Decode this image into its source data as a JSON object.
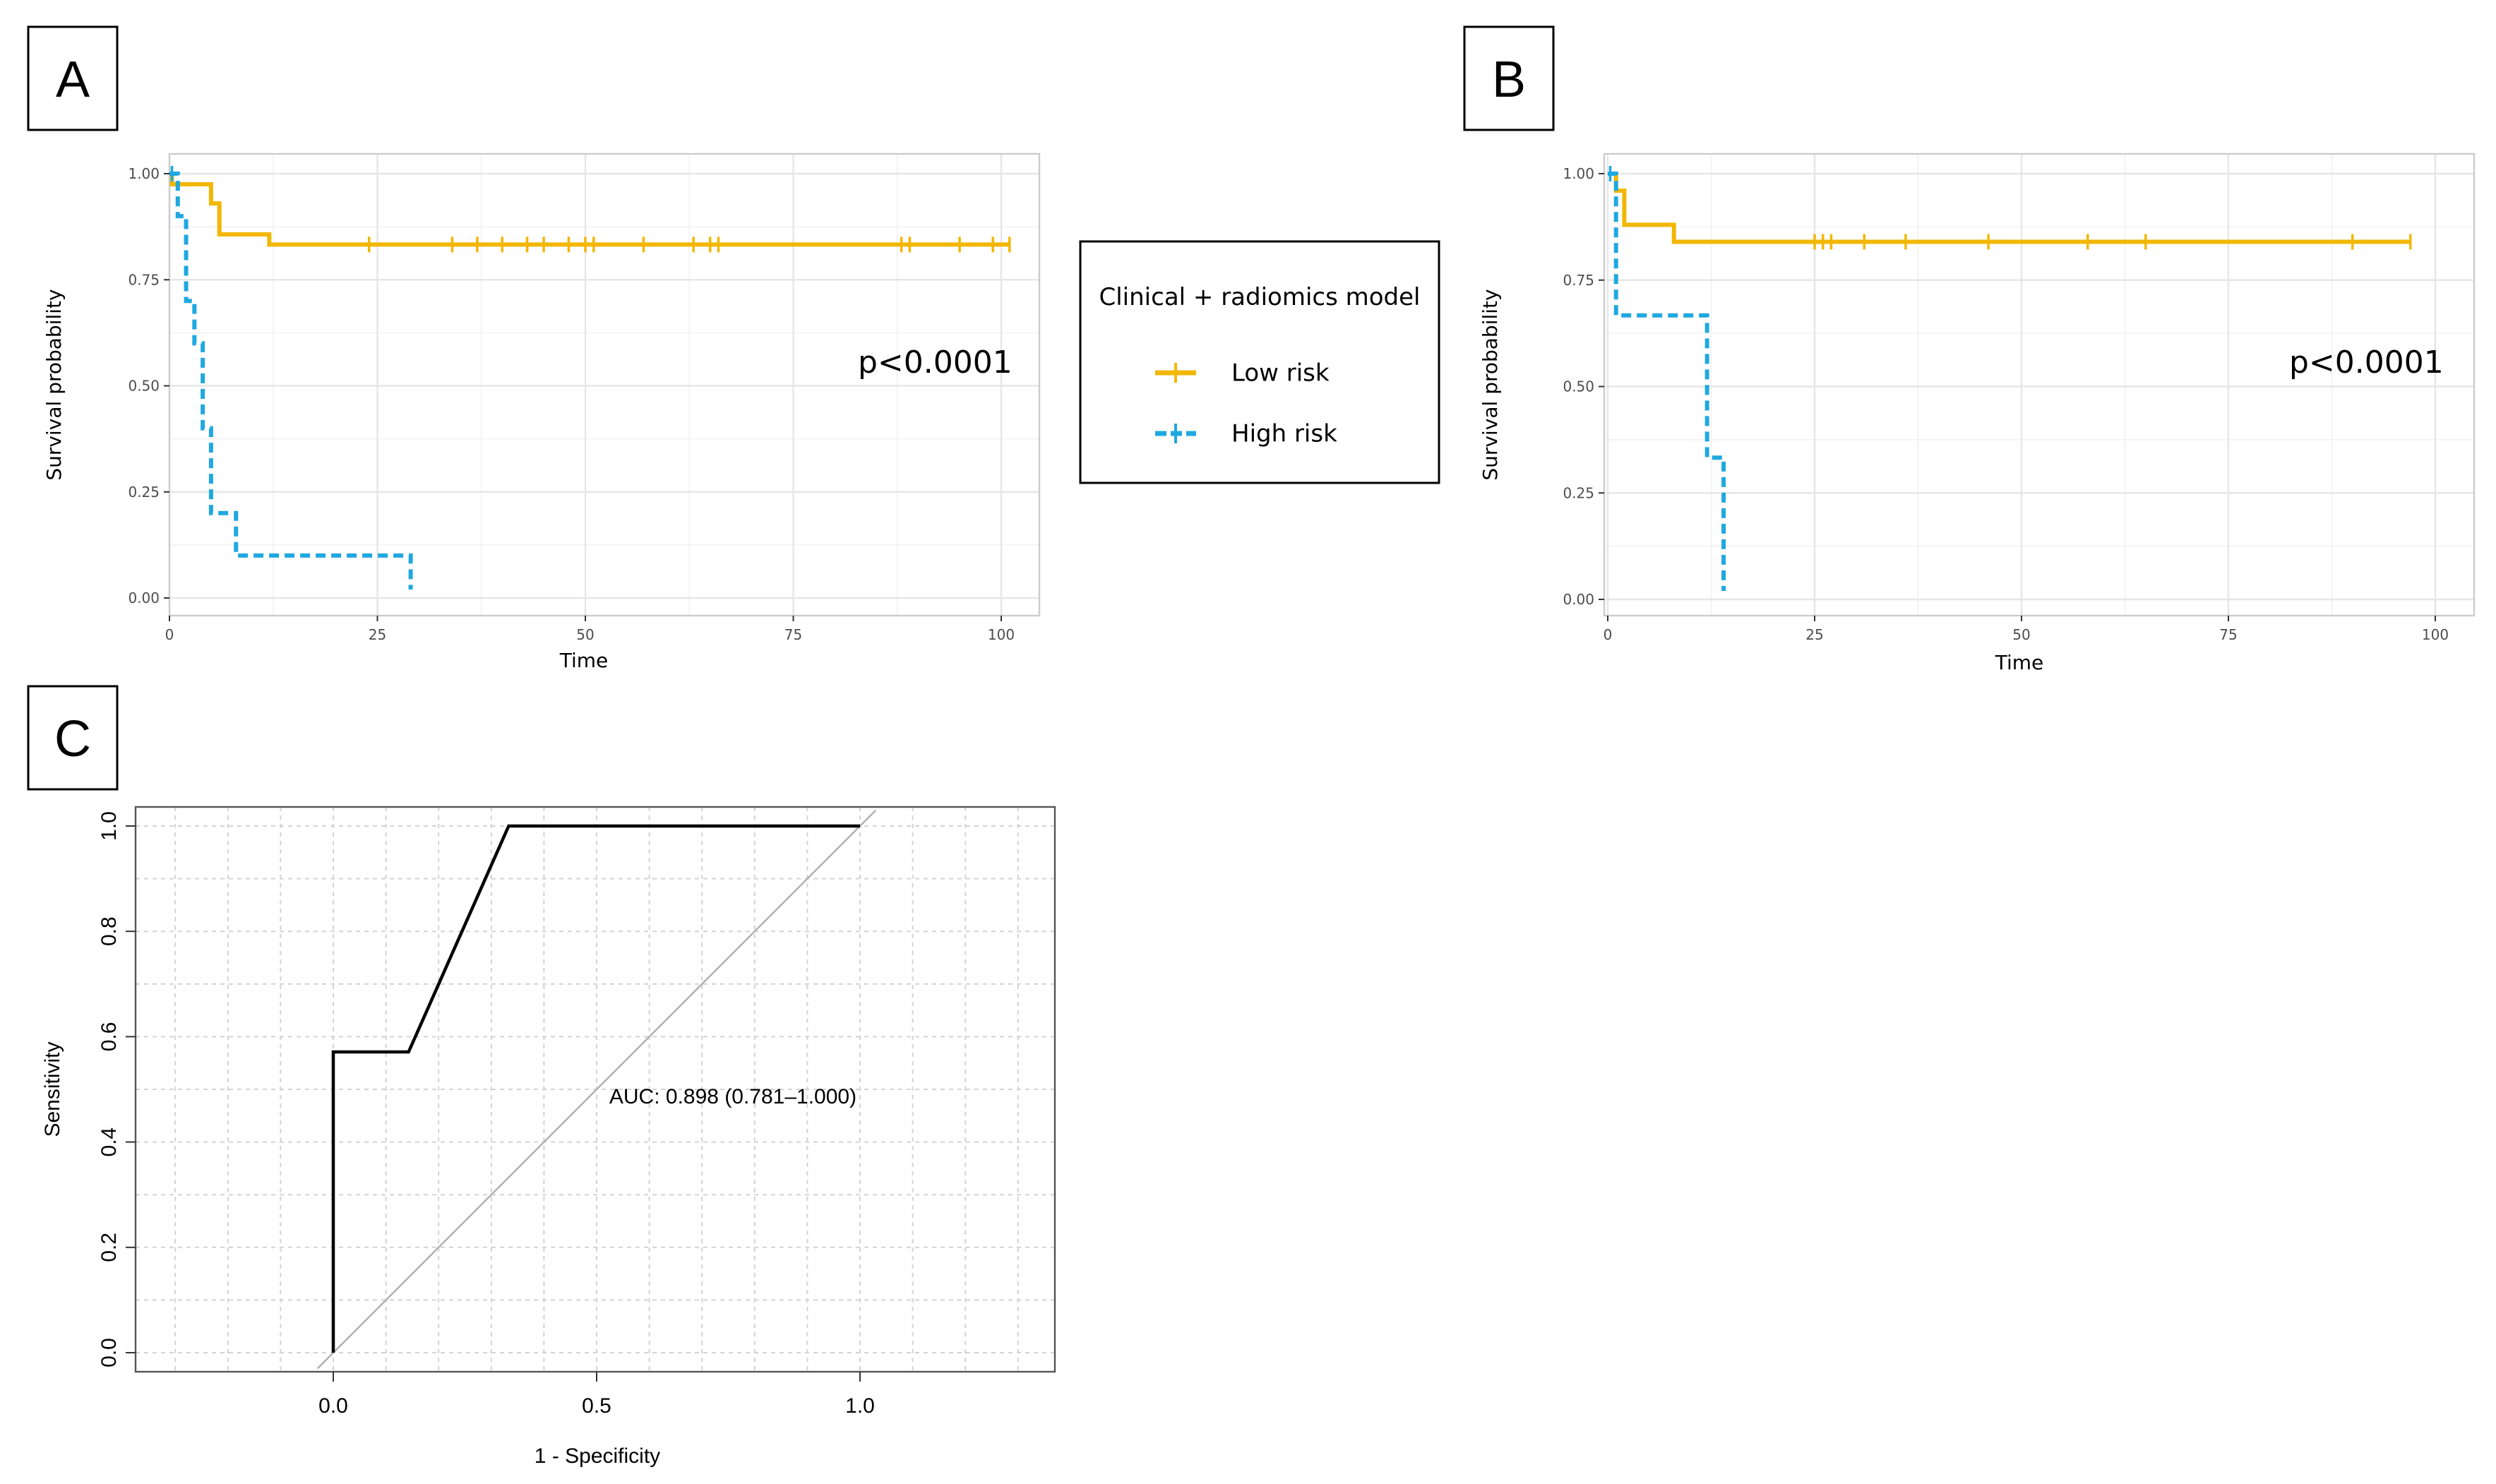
{
  "panels": {
    "a": {
      "letter": "A"
    },
    "b": {
      "letter": "B"
    },
    "c": {
      "letter": "C"
    }
  },
  "colors": {
    "low_risk": "#f2b705",
    "high_risk": "#1fa8e0",
    "roc": "#000000",
    "diagonal": "#b0b0b0"
  },
  "legend": {
    "title": "Clinical + radiomics model",
    "items": [
      {
        "label": "Low risk",
        "series_key": "low"
      },
      {
        "label": "High risk",
        "series_key": "high"
      }
    ]
  },
  "chart_data": [
    {
      "id": "km_a",
      "type": "line",
      "subtype": "kaplan-meier step",
      "xlabel": "Time",
      "ylabel": "Survival probability",
      "xlim": [
        0,
        100
      ],
      "ylim": [
        0,
        1
      ],
      "x_ticks": [
        0,
        25,
        50,
        75,
        100
      ],
      "y_ticks": [
        0.0,
        0.25,
        0.5,
        0.75,
        1.0
      ],
      "y_tick_labels": [
        "0.00",
        "0.25",
        "0.50",
        "0.75",
        "1.00"
      ],
      "grid": true,
      "annotation": "p<0.0001",
      "series": [
        {
          "name": "Low risk",
          "key": "low",
          "style": "solid",
          "steps": [
            [
              0,
              1.0
            ],
            [
              0.3,
              0.975
            ],
            [
              5,
              0.93
            ],
            [
              6,
              0.857
            ],
            [
              12,
              0.833
            ],
            [
              101,
              0.833
            ]
          ],
          "censor_times": [
            24,
            34,
            37,
            40,
            43,
            45,
            48,
            50,
            51,
            57,
            63,
            65,
            66,
            88,
            89,
            95,
            99,
            101
          ]
        },
        {
          "name": "High risk",
          "key": "high",
          "style": "dashed",
          "steps": [
            [
              0,
              1.0
            ],
            [
              1,
              0.9
            ],
            [
              2,
              0.7
            ],
            [
              3,
              0.6
            ],
            [
              4,
              0.4
            ],
            [
              5,
              0.2
            ],
            [
              8,
              0.1
            ],
            [
              29,
              0.1
            ]
          ],
          "end": [
            29,
            0.02
          ],
          "censor_times": [
            0.3
          ]
        }
      ]
    },
    {
      "id": "km_b",
      "type": "line",
      "subtype": "kaplan-meier step",
      "xlabel": "Time",
      "ylabel": "Survival probability",
      "xlim": [
        0,
        100
      ],
      "ylim": [
        0,
        1
      ],
      "x_ticks": [
        0,
        25,
        50,
        75,
        100
      ],
      "y_ticks": [
        0.0,
        0.25,
        0.5,
        0.75,
        1.0
      ],
      "y_tick_labels": [
        "0.00",
        "0.25",
        "0.50",
        "0.75",
        "1.00"
      ],
      "grid": true,
      "annotation": "p<0.0001",
      "series": [
        {
          "name": "Low risk",
          "key": "low",
          "style": "solid",
          "steps": [
            [
              0,
              1.0
            ],
            [
              1,
              0.96
            ],
            [
              2,
              0.88
            ],
            [
              8,
              0.84
            ],
            [
              97,
              0.84
            ]
          ],
          "censor_times": [
            25,
            26,
            27,
            31,
            36,
            46,
            58,
            65,
            90,
            97
          ]
        },
        {
          "name": "High risk",
          "key": "high",
          "style": "dashed",
          "steps": [
            [
              0,
              1.0
            ],
            [
              1,
              0.667
            ],
            [
              12,
              0.333
            ],
            [
              14,
              0.333
            ]
          ],
          "end": [
            14,
            0.02
          ],
          "censor_times": [
            0.3
          ]
        }
      ]
    },
    {
      "id": "roc_c",
      "type": "line",
      "subtype": "roc",
      "xlabel": "1 - Specificity",
      "ylabel": "Sensitivity",
      "xlim": [
        -0.35,
        1.35
      ],
      "ylim": [
        -0.03,
        1.03
      ],
      "x_ticks": [
        0.0,
        0.5,
        1.0
      ],
      "x_tick_labels": [
        "0.0",
        "0.5",
        "1.0"
      ],
      "y_ticks": [
        0.0,
        0.2,
        0.4,
        0.6,
        0.8,
        1.0
      ],
      "y_tick_labels": [
        "0.0",
        "0.2",
        "0.4",
        "0.6",
        "0.8",
        "1.0"
      ],
      "grid": true,
      "annotation": "AUC: 0.898 (0.781–1.000)",
      "series": [
        {
          "name": "ROC",
          "points": [
            [
              0,
              0
            ],
            [
              0,
              0.571
            ],
            [
              0.143,
              0.571
            ],
            [
              0.333,
              1.0
            ],
            [
              1.0,
              1.0
            ]
          ]
        },
        {
          "name": "Reference",
          "points": [
            [
              0,
              0
            ],
            [
              1,
              1
            ]
          ]
        }
      ]
    }
  ]
}
